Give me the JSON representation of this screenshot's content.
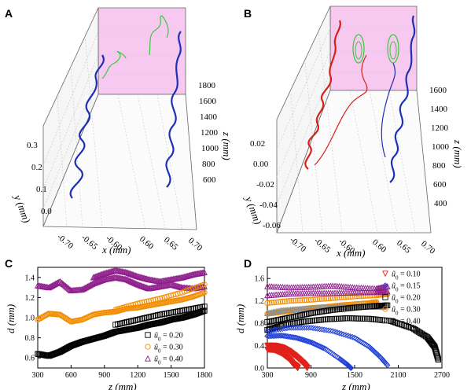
{
  "panels": {
    "a": {
      "label": "A"
    },
    "b": {
      "label": "B"
    },
    "c": {
      "label": "C"
    },
    "d": {
      "label": "D"
    }
  },
  "axes3d": {
    "a": {
      "x_label": "x",
      "x_unit": " (mm)",
      "y_label": "y",
      "y_unit": " (mm)",
      "z_label": "z",
      "z_unit": " (mm)",
      "x_ticks": [
        "-0.70",
        "-0.65",
        "-0.60",
        "0.60",
        "0.65",
        "0.70"
      ],
      "y_ticks": [
        "0.3",
        "0.2",
        "0.1",
        "0.0"
      ],
      "z_ticks": [
        "1800",
        "1600",
        "1400",
        "1200",
        "1000",
        "800",
        "600"
      ]
    },
    "b": {
      "x_label": "x",
      "x_unit": " (mm)",
      "y_label": "y",
      "y_unit": " (mm)",
      "z_label": "z",
      "z_unit": " (mm)",
      "x_ticks": [
        "-0.70",
        "-0.65",
        "-0.60",
        "0.60",
        "0.65",
        "0.70"
      ],
      "y_ticks": [
        "0.02",
        "0.00",
        "-0.02",
        "-0.04",
        "-0.06"
      ],
      "z_ticks": [
        "1600",
        "1400",
        "1200",
        "1000",
        "800",
        "600",
        "400"
      ]
    }
  },
  "chart_data": [
    {
      "panel": "C",
      "type": "scatter",
      "xlabel": "z",
      "xunit": " (mm)",
      "ylabel": "d",
      "yunit": " (mm)",
      "xlim": [
        300,
        1800
      ],
      "ylim": [
        0.5,
        1.5
      ],
      "xticks": [
        "300",
        "600",
        "900",
        "1200",
        "1500",
        "1800"
      ],
      "yticks": [
        "0.6",
        "0.8",
        "1.0",
        "1.2",
        "1.4"
      ],
      "legend_position": "bottom-right",
      "series": [
        {
          "name": " = 0.20",
          "symbol": "ũ",
          "sub": "0",
          "marker": "square",
          "color": "#000000",
          "x": [
            300,
            400,
            500,
            600,
            700,
            800,
            900,
            1000,
            1100,
            1200,
            1300,
            1400,
            1500,
            1600,
            1700,
            1800
          ],
          "y": [
            0.64,
            0.62,
            0.66,
            0.72,
            0.76,
            0.79,
            0.82,
            0.86,
            0.88,
            0.9,
            0.93,
            0.95,
            0.98,
            1.0,
            1.03,
            1.07
          ]
        },
        {
          "name": " = 0.30",
          "symbol": "ũ",
          "sub": "0",
          "marker": "circle",
          "color": "#f28c00",
          "x": [
            300,
            400,
            500,
            600,
            700,
            800,
            900,
            1000,
            1100,
            1200,
            1300,
            1400,
            1500,
            1600,
            1700,
            1800
          ],
          "y": [
            0.98,
            1.04,
            1.03,
            0.96,
            0.98,
            1.03,
            1.05,
            1.06,
            1.09,
            1.1,
            1.12,
            1.14,
            1.16,
            1.18,
            1.21,
            1.25
          ]
        },
        {
          "name": " = 0.40",
          "symbol": "ũ",
          "sub": "0",
          "marker": "triangle",
          "color": "#8e1f8c",
          "x": [
            300,
            400,
            500,
            600,
            700,
            800,
            900,
            1000,
            1100,
            1200,
            1300,
            1400,
            1500,
            1600,
            1700,
            1800
          ],
          "y": [
            1.32,
            1.3,
            1.36,
            1.27,
            1.28,
            1.34,
            1.38,
            1.4,
            1.38,
            1.33,
            1.29,
            1.31,
            1.33,
            1.3,
            1.29,
            1.31
          ]
        },
        {
          "marker": "square",
          "color": "#000000",
          "x": [
            1000,
            1200,
            1400,
            1600,
            1800
          ],
          "y": [
            0.93,
            0.98,
            1.03,
            1.07,
            1.11
          ]
        },
        {
          "marker": "circle",
          "color": "#f28c00",
          "x": [
            1000,
            1200,
            1400,
            1600,
            1800
          ],
          "y": [
            1.08,
            1.14,
            1.19,
            1.25,
            1.33
          ]
        },
        {
          "marker": "triangle",
          "color": "#8e1f8c",
          "x": [
            800,
            900,
            1000,
            1100,
            1200,
            1300,
            1400,
            1500,
            1600,
            1700,
            1800
          ],
          "y": [
            1.4,
            1.44,
            1.47,
            1.45,
            1.41,
            1.38,
            1.36,
            1.38,
            1.4,
            1.43,
            1.45
          ]
        }
      ]
    },
    {
      "panel": "D",
      "type": "scatter",
      "xlabel": "z",
      "xunit": " (mm)",
      "ylabel": "d",
      "yunit": " (mm)",
      "xlim": [
        300,
        2700
      ],
      "ylim": [
        0.0,
        1.8
      ],
      "xticks": [
        "300",
        "900",
        "1500",
        "2100",
        "2700"
      ],
      "yticks": [
        "0.0",
        "0.4",
        "0.8",
        "1.2",
        "1.6"
      ],
      "legend_position": "top-right",
      "series": [
        {
          "name": " = 0.10",
          "symbol": "ũ",
          "sub": "0",
          "marker": "triangle-down",
          "color": "#e0201a",
          "x": [
            300,
            400,
            500,
            600,
            650,
            700,
            720
          ],
          "y": [
            0.33,
            0.32,
            0.26,
            0.16,
            0.08,
            0.03,
            0.0
          ]
        },
        {
          "name": " = 0.15",
          "symbol": "ũ",
          "sub": "0",
          "marker": "diamond",
          "color": "#1f3fd8",
          "x": [
            300,
            500,
            700,
            900,
            1100,
            1300,
            1400,
            1450
          ],
          "y": [
            0.57,
            0.58,
            0.54,
            0.46,
            0.34,
            0.16,
            0.06,
            0.0
          ]
        },
        {
          "name": " = 0.20",
          "symbol": "ũ",
          "sub": "0",
          "marker": "square",
          "color": "#000000",
          "x": [
            300,
            500,
            800,
            1100,
            1400,
            1700,
            2000,
            2300,
            2500,
            2600,
            2650
          ],
          "y": [
            0.68,
            0.76,
            0.83,
            0.87,
            0.89,
            0.88,
            0.84,
            0.71,
            0.55,
            0.38,
            0.15
          ]
        },
        {
          "name": " = 0.30",
          "symbol": "ũ",
          "sub": "0",
          "marker": "circle",
          "color": "#f28c00",
          "x": [
            300,
            500,
            700,
            900,
            1100,
            1300,
            1500,
            1700,
            1800
          ],
          "y": [
            0.97,
            1.0,
            1.04,
            1.07,
            1.09,
            1.12,
            1.14,
            1.16,
            1.18
          ]
        },
        {
          "name": " = 0.40",
          "symbol": "ũ",
          "sub": "0",
          "marker": "triangle",
          "color": "#8e8e8e",
          "x": [
            300,
            500,
            700,
            900,
            1100,
            1300,
            1500,
            1700,
            1900
          ],
          "y": [
            0.98,
            1.03,
            1.05,
            1.07,
            1.08,
            1.09,
            1.1,
            1.1,
            1.09
          ]
        },
        {
          "marker": "triangle-down",
          "color": "#e0201a",
          "x": [
            300,
            400,
            500,
            600,
            700,
            800,
            850
          ],
          "y": [
            0.4,
            0.4,
            0.37,
            0.3,
            0.2,
            0.08,
            0.0
          ]
        },
        {
          "marker": "diamond",
          "color": "#1f3fd8",
          "x": [
            300,
            600,
            900,
            1200,
            1500,
            1700,
            1850,
            1950
          ],
          "y": [
            0.66,
            0.72,
            0.72,
            0.66,
            0.54,
            0.38,
            0.2,
            0.05
          ]
        },
        {
          "marker": "square",
          "color": "#000000",
          "x": [
            300,
            600,
            900,
            1200,
            1500,
            1800,
            1950
          ],
          "y": [
            0.82,
            0.9,
            0.98,
            1.04,
            1.08,
            1.11,
            1.12
          ]
        },
        {
          "marker": "circle",
          "color": "#f28c00",
          "x": [
            300,
            600,
            900,
            1200,
            1500,
            1800,
            1950
          ],
          "y": [
            1.16,
            1.2,
            1.22,
            1.25,
            1.28,
            1.3,
            1.32
          ]
        },
        {
          "marker": "triangle",
          "color": "#8e1f8c",
          "x": [
            300,
            600,
            900,
            1200,
            1500,
            1800,
            1950
          ],
          "y": [
            1.3,
            1.33,
            1.34,
            1.34,
            1.35,
            1.36,
            1.37
          ]
        },
        {
          "marker": "triangle",
          "color": "#8e1f8c",
          "x": [
            300,
            600,
            900,
            1200,
            1500,
            1800,
            1950
          ],
          "y": [
            1.46,
            1.44,
            1.45,
            1.47,
            1.44,
            1.42,
            1.46
          ]
        }
      ]
    }
  ]
}
